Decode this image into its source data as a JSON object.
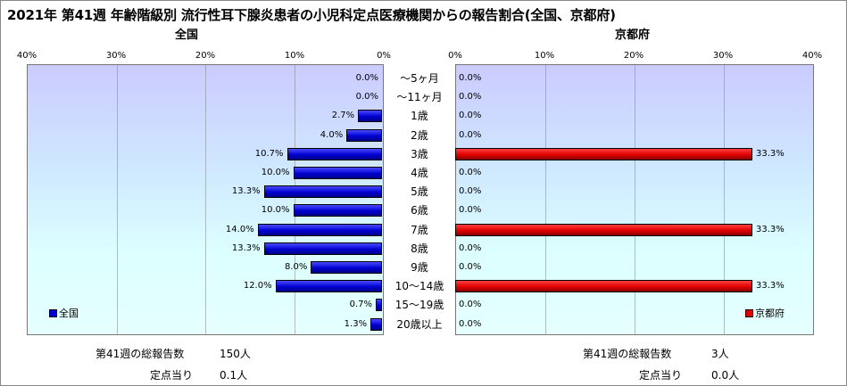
{
  "title": "2021年 第41週 年齢階級別 流行性耳下腺炎患者の小児科定点医療機関からの報告割合(全国、京都府)",
  "chart_data": [
    {
      "type": "bar",
      "title": "全国",
      "categories": [
        "～5ヶ月",
        "～11ヶ月",
        "1歳",
        "2歳",
        "3歳",
        "4歳",
        "5歳",
        "6歳",
        "7歳",
        "8歳",
        "9歳",
        "10～14歳",
        "15～19歳",
        "20歳以上"
      ],
      "series": [
        {
          "name": "全国",
          "values": [
            0.0,
            0.0,
            2.7,
            4.0,
            10.7,
            10.0,
            13.3,
            10.0,
            14.0,
            13.3,
            8.0,
            12.0,
            0.7,
            1.3
          ]
        }
      ],
      "value_labels": [
        "0.0%",
        "0.0%",
        "2.7%",
        "4.0%",
        "10.7%",
        "10.0%",
        "13.3%",
        "10.0%",
        "14.0%",
        "13.3%",
        "8.0%",
        "12.0%",
        "0.7%",
        "1.3%"
      ],
      "xlim": [
        40,
        0
      ],
      "ticks": [
        "40%",
        "30%",
        "20%",
        "10%",
        "0%"
      ],
      "orientation": "horizontal-reversed",
      "grid": true,
      "legend_position": "bottom-left",
      "color": "#0000d0"
    },
    {
      "type": "bar",
      "title": "京都府",
      "categories": [
        "～5ヶ月",
        "～11ヶ月",
        "1歳",
        "2歳",
        "3歳",
        "4歳",
        "5歳",
        "6歳",
        "7歳",
        "8歳",
        "9歳",
        "10～14歳",
        "15～19歳",
        "20歳以上"
      ],
      "series": [
        {
          "name": "京都府",
          "values": [
            0.0,
            0.0,
            0.0,
            0.0,
            33.3,
            0.0,
            0.0,
            0.0,
            33.3,
            0.0,
            0.0,
            33.3,
            0.0,
            0.0
          ]
        }
      ],
      "value_labels": [
        "0.0%",
        "0.0%",
        "0.0%",
        "0.0%",
        "33.3%",
        "0.0%",
        "0.0%",
        "0.0%",
        "33.3%",
        "0.0%",
        "0.0%",
        "33.3%",
        "0.0%",
        "0.0%"
      ],
      "xlim": [
        0,
        40
      ],
      "ticks": [
        "0%",
        "10%",
        "20%",
        "30%",
        "40%"
      ],
      "orientation": "horizontal",
      "grid": true,
      "legend_position": "bottom-right",
      "color": "#e00000"
    }
  ],
  "footer": {
    "left": {
      "total_label": "第41週の総報告数",
      "total_value": "150人",
      "per_label": "定点当り",
      "per_value": "0.1人"
    },
    "right": {
      "total_label": "第41週の総報告数",
      "total_value": "3人",
      "per_label": "定点当り",
      "per_value": "0.0人"
    }
  }
}
